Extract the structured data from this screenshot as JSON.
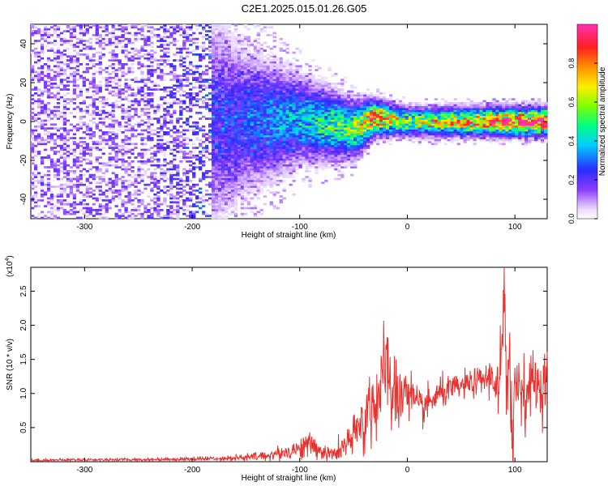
{
  "title": "C2E1.2025.015.01.26.G05",
  "colors": {
    "snr_line": "#e8322f",
    "axis": "#000000",
    "background": "#ffffff"
  },
  "chart_data": [
    {
      "type": "heatmap",
      "name": "spectrogram",
      "xlabel": "Height of straight line (km)",
      "ylabel": "Frequency (Hz)",
      "xlim": [
        -350,
        130
      ],
      "ylim": [
        -50,
        50
      ],
      "x_ticks": [
        -300,
        -200,
        -100,
        0,
        100
      ],
      "x_tick_labels": [
        "-300",
        "-200",
        "-100",
        "0",
        "100"
      ],
      "y_ticks": [
        -40,
        -20,
        0,
        20,
        40
      ],
      "y_tick_labels": [
        "-40",
        "-20",
        "0",
        "20",
        "40"
      ],
      "colorbar": {
        "label": "Normalized spectral amplitude",
        "range": [
          0,
          1
        ],
        "ticks": [
          0.0,
          0.2,
          0.4,
          0.6,
          0.8
        ],
        "tick_labels": [
          "0.0",
          "0.2",
          "0.4",
          "0.6",
          "0.8"
        ],
        "colormap": "rainbow (white-violet-blue-cyan-green-yellow-red-magenta)"
      },
      "description_points": [
        {
          "x": -350,
          "center_freq": 0,
          "spread": 50,
          "amplitude": 0.12
        },
        {
          "x": -250,
          "center_freq": 0,
          "spread": 50,
          "amplitude": 0.12
        },
        {
          "x": -150,
          "center_freq": 0,
          "spread": 20,
          "amplitude": 0.25
        },
        {
          "x": -100,
          "center_freq": 1,
          "spread": 12,
          "amplitude": 0.35
        },
        {
          "x": -50,
          "center_freq": -4,
          "spread": 8,
          "amplitude": 0.55
        },
        {
          "x": -30,
          "center_freq": 2,
          "spread": 5,
          "amplitude": 0.8
        },
        {
          "x": 0,
          "center_freq": 0,
          "spread": 4,
          "amplitude": 0.55
        },
        {
          "x": 50,
          "center_freq": 0,
          "spread": 4,
          "amplitude": 0.7
        },
        {
          "x": 100,
          "center_freq": 0,
          "spread": 4,
          "amplitude": 0.9
        },
        {
          "x": 130,
          "center_freq": 0,
          "spread": 4,
          "amplitude": 0.95
        }
      ]
    },
    {
      "type": "line",
      "name": "snr",
      "xlabel": "Height of straight line (km)",
      "ylabel": "SNR (10 * v/v)",
      "y_scale_note": "(x10",
      "y_scale_exp": "4",
      "xlim": [
        -350,
        130
      ],
      "ylim": [
        0,
        2.85
      ],
      "x_ticks": [
        -300,
        -200,
        -100,
        0,
        100
      ],
      "x_tick_labels": [
        "-300",
        "-200",
        "-100",
        "0",
        "100"
      ],
      "y_ticks": [
        0.5,
        1.0,
        1.5,
        2.0,
        2.5
      ],
      "y_tick_labels": [
        "0.5",
        "1.0",
        "1.5",
        "2.0",
        "2.5"
      ],
      "series": [
        {
          "x": [
            -350,
            -300,
            -250,
            -200,
            -170,
            -150,
            -130,
            -110,
            -100,
            -90,
            -80,
            -70,
            -60,
            -50,
            -45,
            -40,
            -35,
            -30,
            -25,
            -20,
            -17,
            -15,
            -12,
            -10,
            -5,
            0,
            10,
            20,
            30,
            40,
            50,
            60,
            70,
            80,
            85,
            88,
            90,
            92,
            95,
            98,
            100,
            105,
            110,
            115,
            120,
            125,
            130
          ],
          "y": [
            0.02,
            0.03,
            0.03,
            0.04,
            0.05,
            0.06,
            0.09,
            0.15,
            0.2,
            0.25,
            0.15,
            0.1,
            0.2,
            0.35,
            0.5,
            0.6,
            0.8,
            0.9,
            1.1,
            1.3,
            1.5,
            0.8,
            1.1,
            0.9,
            1.0,
            1.1,
            0.75,
            0.85,
            1.0,
            1.05,
            1.1,
            1.15,
            1.2,
            1.25,
            1.0,
            1.5,
            2.75,
            0.3,
            2.1,
            0.2,
            1.1,
            1.2,
            0.95,
            1.2,
            1.15,
            1.05,
            1.35
          ],
          "noise": [
            0.01,
            0.01,
            0.01,
            0.015,
            0.02,
            0.03,
            0.04,
            0.06,
            0.08,
            0.1,
            0.06,
            0.05,
            0.1,
            0.15,
            0.2,
            0.25,
            0.3,
            0.35,
            0.35,
            0.35,
            0.35,
            0.3,
            0.3,
            0.25,
            0.25,
            0.2,
            0.15,
            0.12,
            0.12,
            0.1,
            0.1,
            0.1,
            0.1,
            0.15,
            0.25,
            0.5,
            0.7,
            0.5,
            0.6,
            0.5,
            0.4,
            0.3,
            0.25,
            0.2,
            0.2,
            0.2,
            0.2
          ]
        }
      ]
    }
  ]
}
